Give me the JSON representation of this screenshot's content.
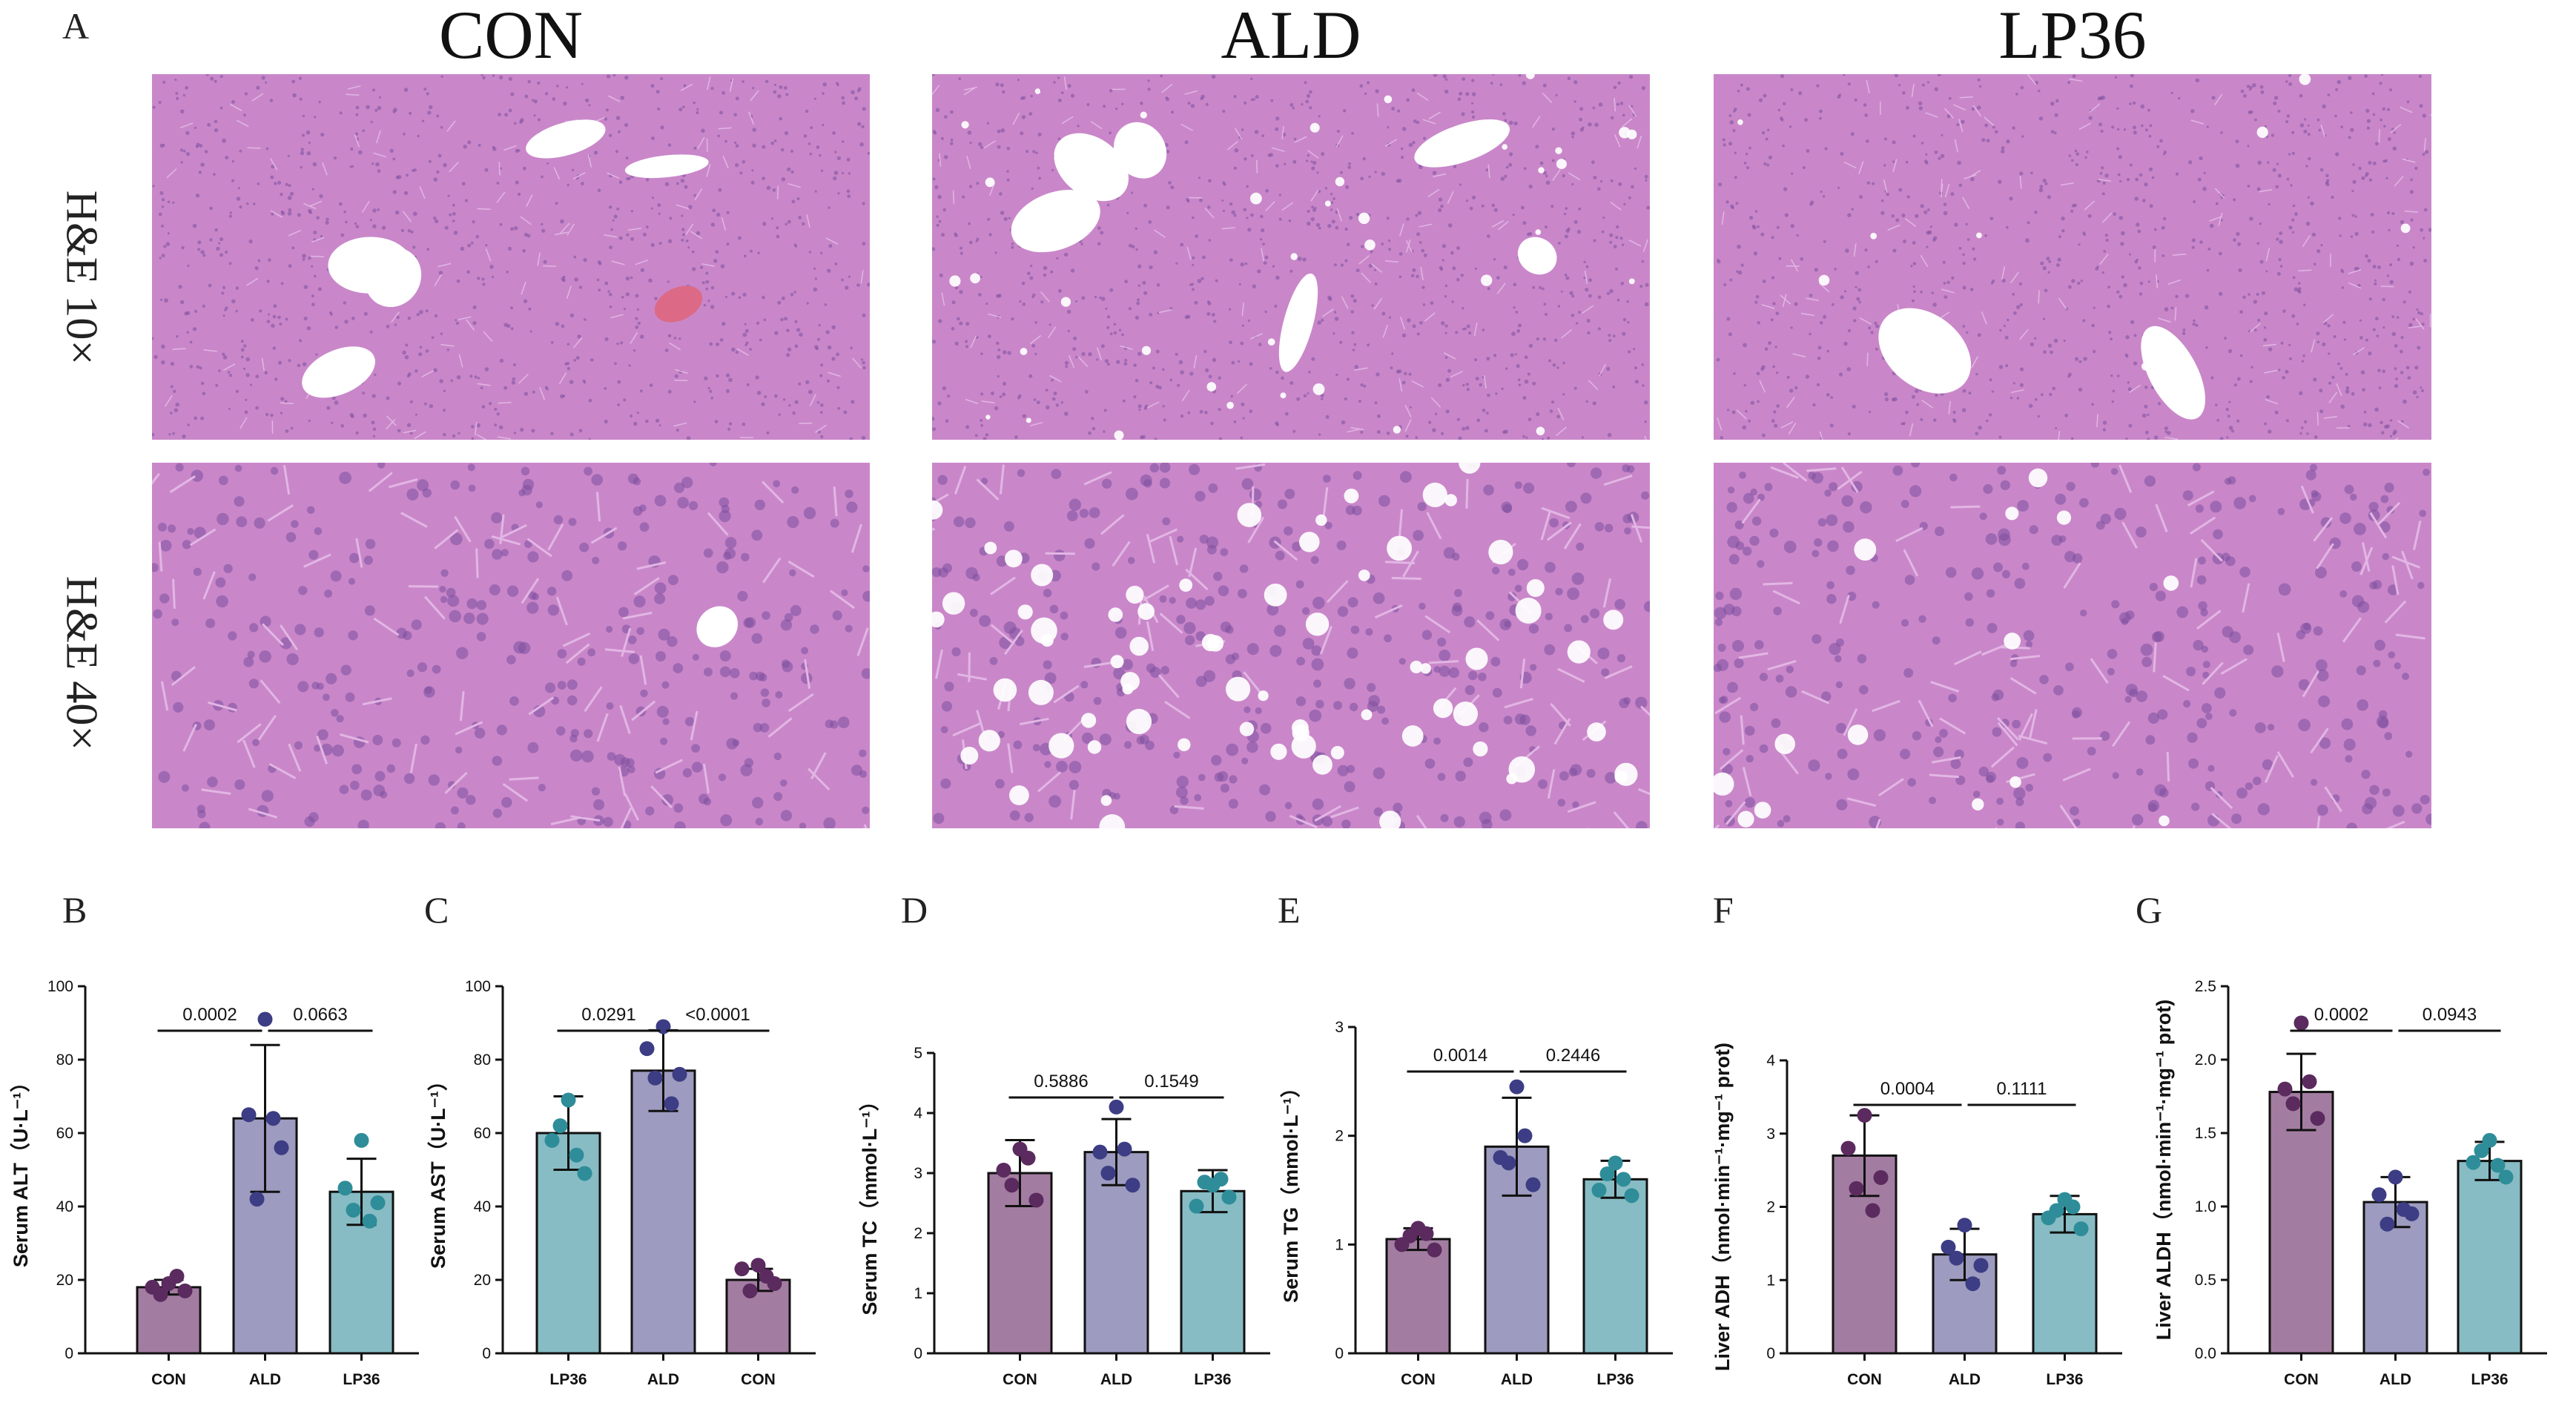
{
  "panel_a": {
    "letter": "A",
    "groups": [
      "CON",
      "ALD",
      "LP36"
    ],
    "rows": [
      "H&E 10×",
      "H&E 40×"
    ],
    "colors": {
      "tissue": "#c987c9",
      "tissue_light": "#e2b6e4",
      "nuclei": "#7b4f9e",
      "vessel": "#ffffff",
      "blood": "#dc6a86"
    }
  },
  "chart_data": [
    {
      "id": "B",
      "type": "bar",
      "ylabel": "Serum ALT（U·L⁻¹）",
      "categories": [
        "CON",
        "ALD",
        "LP36"
      ],
      "values": [
        18,
        64,
        44
      ],
      "errors": [
        2,
        20,
        9
      ],
      "points": [
        [
          19,
          18,
          17,
          16,
          21
        ],
        [
          91,
          65,
          56,
          42,
          64
        ],
        [
          58,
          45,
          41,
          39,
          36
        ]
      ],
      "colors": [
        "#a37da1",
        "#9d9bbf",
        "#87bcc4"
      ],
      "dot_colors": [
        "#5b2a5f",
        "#3c3d84",
        "#2e8d98"
      ],
      "ylim": [
        0,
        100
      ],
      "yticks": [
        0,
        20,
        40,
        60,
        80,
        100
      ],
      "comparisons": [
        {
          "label": "0.0002",
          "from": 0,
          "to": 1
        },
        {
          "label": "0.0663",
          "from": 1,
          "to": 2
        }
      ]
    },
    {
      "id": "C",
      "type": "bar",
      "ylabel": "Serum AST（U·L⁻¹）",
      "categories": [
        "LP36",
        "ALD",
        "CON"
      ],
      "values": [
        60,
        77,
        20
      ],
      "errors": [
        10,
        11,
        3
      ],
      "points": [
        [
          69,
          58,
          49,
          62,
          54
        ],
        [
          89,
          83,
          76,
          75,
          68
        ],
        [
          24,
          23,
          19,
          17,
          21
        ]
      ],
      "colors": [
        "#87bcc4",
        "#9d9bbf",
        "#a37da1"
      ],
      "dot_colors": [
        "#2e8d98",
        "#3c3d84",
        "#5b2a5f"
      ],
      "ylim": [
        0,
        100
      ],
      "yticks": [
        0,
        20,
        40,
        60,
        80,
        100
      ],
      "comparisons": [
        {
          "label": "0.0291",
          "from": 0,
          "to": 1
        },
        {
          "label": "<0.0001",
          "from": 1,
          "to": 2
        }
      ]
    },
    {
      "id": "D",
      "type": "bar",
      "ylabel": "Serum TC（mmol·L⁻¹）",
      "categories": [
        "CON",
        "ALD",
        "LP36"
      ],
      "values": [
        3.0,
        3.35,
        2.7
      ],
      "errors": [
        0.55,
        0.55,
        0.35
      ],
      "points": [
        [
          3.4,
          3.05,
          2.55,
          2.8,
          3.25
        ],
        [
          4.1,
          3.35,
          2.8,
          3.0,
          3.4
        ],
        [
          2.8,
          2.45,
          2.6,
          2.85,
          2.9
        ]
      ],
      "colors": [
        "#a37da1",
        "#9d9bbf",
        "#87bcc4"
      ],
      "dot_colors": [
        "#5b2a5f",
        "#3c3d84",
        "#2e8d98"
      ],
      "ylim": [
        0,
        5
      ],
      "yticks": [
        0,
        1,
        2,
        3,
        4,
        5
      ],
      "comparisons": [
        {
          "label": "0.5886",
          "from": 0,
          "to": 1
        },
        {
          "label": "0.1549",
          "from": 1,
          "to": 2
        }
      ]
    },
    {
      "id": "E",
      "type": "bar",
      "ylabel": "Serum TG（mmol·L⁻¹）",
      "categories": [
        "CON",
        "ALD",
        "LP36"
      ],
      "values": [
        1.05,
        1.9,
        1.6
      ],
      "errors": [
        0.1,
        0.45,
        0.17
      ],
      "points": [
        [
          1.15,
          1.0,
          0.95,
          1.08,
          1.1
        ],
        [
          2.45,
          1.8,
          1.55,
          1.75,
          2.0
        ],
        [
          1.75,
          1.5,
          1.45,
          1.65,
          1.6
        ]
      ],
      "colors": [
        "#a37da1",
        "#9d9bbf",
        "#87bcc4"
      ],
      "dot_colors": [
        "#5b2a5f",
        "#3c3d84",
        "#2e8d98"
      ],
      "ylim": [
        0,
        3
      ],
      "yticks": [
        0,
        1,
        2,
        3
      ],
      "comparisons": [
        {
          "label": "0.0014",
          "from": 0,
          "to": 1
        },
        {
          "label": "0.2446",
          "from": 1,
          "to": 2
        }
      ]
    },
    {
      "id": "F",
      "type": "bar",
      "ylabel": "Liver ADH（nmol·min⁻¹·mg⁻¹ prot)",
      "categories": [
        "CON",
        "ALD",
        "LP36"
      ],
      "values": [
        2.7,
        1.35,
        1.9
      ],
      "errors": [
        0.55,
        0.35,
        0.25
      ],
      "points": [
        [
          3.25,
          2.8,
          2.4,
          2.25,
          1.95
        ],
        [
          1.75,
          1.45,
          1.2,
          1.3,
          0.95
        ],
        [
          2.1,
          1.85,
          1.7,
          1.95,
          2.0
        ]
      ],
      "colors": [
        "#a37da1",
        "#9d9bbf",
        "#87bcc4"
      ],
      "dot_colors": [
        "#5b2a5f",
        "#3c3d84",
        "#2e8d98"
      ],
      "ylim": [
        0,
        4
      ],
      "yticks": [
        0,
        1,
        2,
        3,
        4
      ],
      "comparisons": [
        {
          "label": "0.0004",
          "from": 0,
          "to": 1
        },
        {
          "label": "0.1111",
          "from": 1,
          "to": 2
        }
      ]
    },
    {
      "id": "G",
      "type": "bar",
      "ylabel": "Liver ALDH（nmol·min⁻¹·mg⁻¹ prot)",
      "categories": [
        "CON",
        "ALD",
        "LP36"
      ],
      "values": [
        1.78,
        1.03,
        1.31
      ],
      "errors": [
        0.26,
        0.17,
        0.13
      ],
      "points": [
        [
          2.25,
          1.8,
          1.6,
          1.7,
          1.85
        ],
        [
          1.2,
          1.08,
          0.95,
          0.88,
          0.98
        ],
        [
          1.45,
          1.3,
          1.2,
          1.38,
          1.28
        ]
      ],
      "colors": [
        "#a37da1",
        "#9d9bbf",
        "#87bcc4"
      ],
      "dot_colors": [
        "#5b2a5f",
        "#3c3d84",
        "#2e8d98"
      ],
      "ylim": [
        0,
        2.5
      ],
      "yticks": [
        0,
        0.5,
        1.0,
        1.5,
        2.0,
        2.5
      ],
      "comparisons": [
        {
          "label": "0.0002",
          "from": 0,
          "to": 1
        },
        {
          "label": "0.0943",
          "from": 1,
          "to": 2
        }
      ]
    }
  ]
}
